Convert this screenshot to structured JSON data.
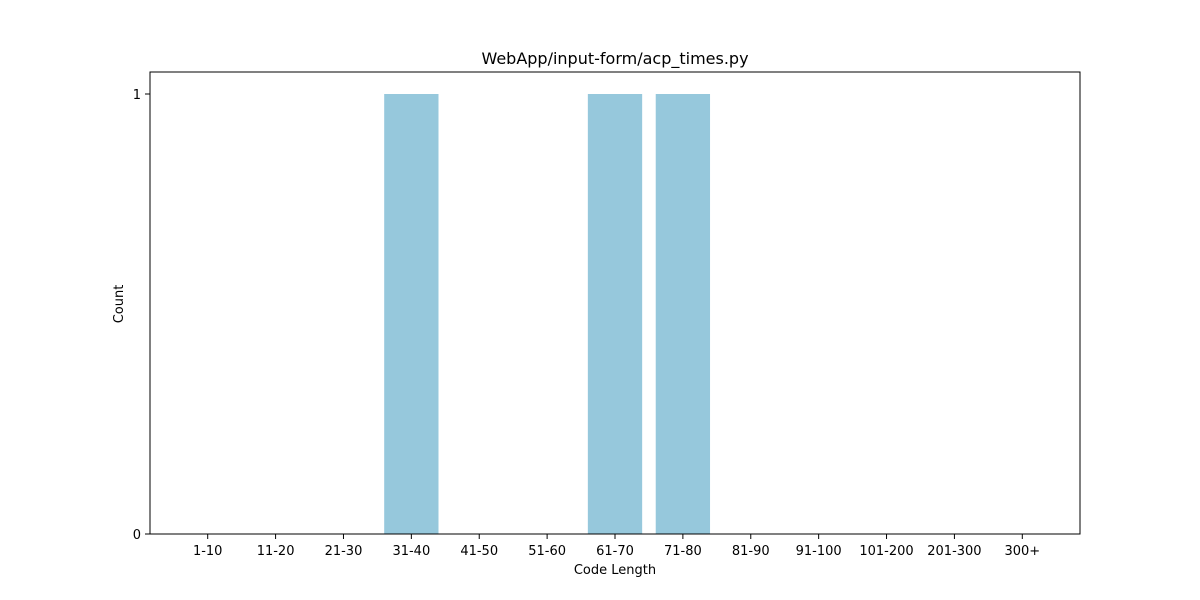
{
  "chart_data": {
    "type": "bar",
    "title": "WebApp/input-form/acp_times.py",
    "xlabel": "Code Length",
    "ylabel": "Count",
    "categories": [
      "1-10",
      "11-20",
      "21-30",
      "31-40",
      "41-50",
      "51-60",
      "61-70",
      "71-80",
      "81-90",
      "91-100",
      "101-200",
      "201-300",
      "300+"
    ],
    "values": [
      0,
      0,
      0,
      1,
      0,
      0,
      1,
      1,
      0,
      0,
      0,
      0,
      0
    ],
    "ylim": [
      0,
      1.05
    ],
    "yticks": [
      0,
      1
    ],
    "bar_color": "#96c8dc",
    "grid": false,
    "legend": "none"
  }
}
